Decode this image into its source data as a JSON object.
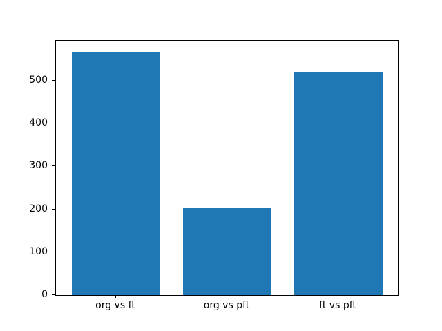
{
  "chart_data": {
    "type": "bar",
    "title": "",
    "xlabel": "",
    "ylabel": "",
    "categories": [
      "org vs ft",
      "org vs pft",
      "ft vs pft"
    ],
    "values": [
      566,
      203,
      521
    ],
    "yticks": [
      0,
      100,
      200,
      300,
      400,
      500
    ],
    "ylim": [
      0,
      593
    ],
    "grid": false,
    "legend": null,
    "bar_color": "#1f77b4",
    "axes_color": "#000000",
    "background_color": "#ffffff"
  }
}
